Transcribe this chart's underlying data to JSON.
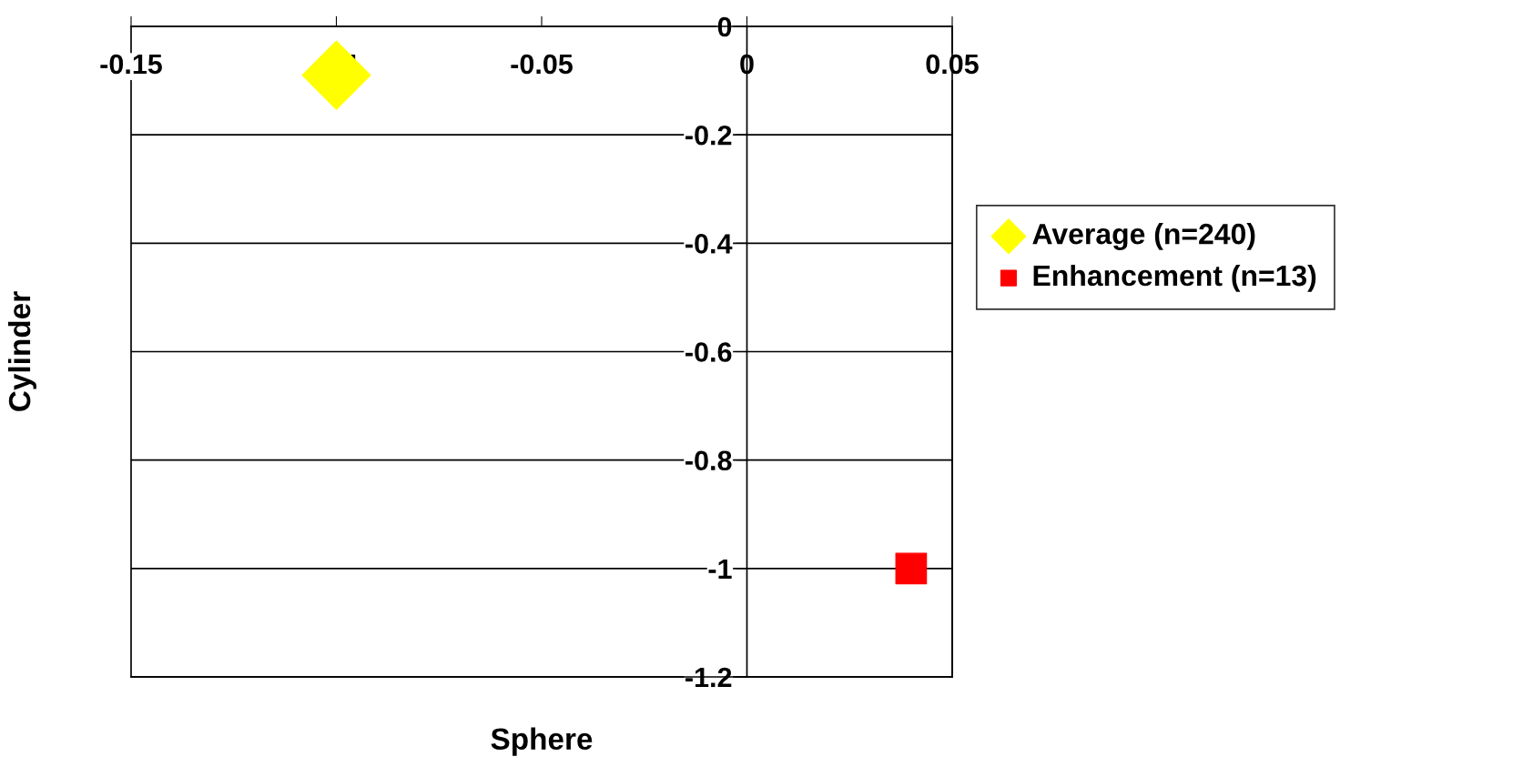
{
  "chart_data": {
    "type": "scatter",
    "xlabel": "Sphere",
    "ylabel": "Cylinder",
    "xlim": [
      -0.15,
      0.05
    ],
    "xticks": [
      -0.15,
      -0.1,
      -0.05,
      0,
      0.05
    ],
    "ylim": [
      -1.2,
      0
    ],
    "yticks": [
      -1.2,
      -1,
      -0.8,
      -0.6,
      -0.4,
      -0.2,
      0
    ],
    "grid": "y",
    "legend": "right",
    "series": [
      {
        "name": "Average (n=240)",
        "color": "#ffff00",
        "marker": "diamond",
        "x": [
          -0.1
        ],
        "values": [
          -0.09
        ]
      },
      {
        "name": "Enhancement (n=13)",
        "color": "#ff0000",
        "marker": "square",
        "x": [
          0.04
        ],
        "values": [
          -1.0
        ]
      }
    ]
  }
}
